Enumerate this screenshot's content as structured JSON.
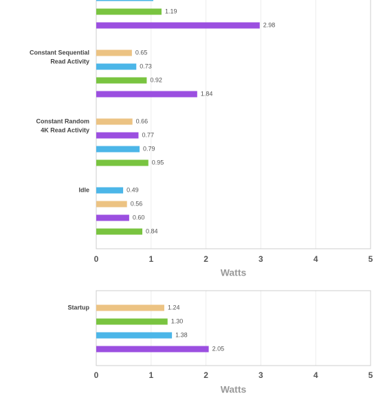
{
  "chart_data": [
    {
      "type": "bar",
      "orientation": "horizontal",
      "xlabel": "Watts",
      "xlim": [
        0,
        5
      ],
      "xticks": [
        0,
        1,
        2,
        3,
        4,
        5
      ],
      "grid": true,
      "groups": [
        {
          "label": null,
          "bars": [
            {
              "color": "#4cb6e8",
              "value": 1.04
            },
            {
              "color": "#79c440",
              "value": 1.19
            },
            {
              "color": "#9b4fe0",
              "value": 2.98
            }
          ]
        },
        {
          "label": [
            "Constant Sequential",
            "Read Activity"
          ],
          "bars": [
            {
              "color": "#ecc383",
              "value": 0.65
            },
            {
              "color": "#4cb6e8",
              "value": 0.73
            },
            {
              "color": "#79c440",
              "value": 0.92
            },
            {
              "color": "#9b4fe0",
              "value": 1.84
            }
          ]
        },
        {
          "label": [
            "Constant Random",
            "4K Read Activity"
          ],
          "bars": [
            {
              "color": "#ecc383",
              "value": 0.66
            },
            {
              "color": "#9b4fe0",
              "value": 0.77
            },
            {
              "color": "#4cb6e8",
              "value": 0.79
            },
            {
              "color": "#79c440",
              "value": 0.95
            }
          ]
        },
        {
          "label": [
            "Idle"
          ],
          "bars": [
            {
              "color": "#4cb6e8",
              "value": 0.49
            },
            {
              "color": "#ecc383",
              "value": 0.56
            },
            {
              "color": "#9b4fe0",
              "value": 0.6,
              "value_label": "0.60"
            },
            {
              "color": "#79c440",
              "value": 0.84
            }
          ]
        }
      ]
    },
    {
      "type": "bar",
      "orientation": "horizontal",
      "xlabel": "Watts",
      "xlim": [
        0,
        5
      ],
      "xticks": [
        0,
        1,
        2,
        3,
        4,
        5
      ],
      "grid": true,
      "groups": [
        {
          "label": [
            "Startup"
          ],
          "bars": [
            {
              "color": "#ecc383",
              "value": 1.24
            },
            {
              "color": "#79c440",
              "value": 1.3,
              "value_label": "1.30"
            },
            {
              "color": "#4cb6e8",
              "value": 1.38
            },
            {
              "color": "#9b4fe0",
              "value": 2.05
            }
          ]
        }
      ]
    }
  ]
}
